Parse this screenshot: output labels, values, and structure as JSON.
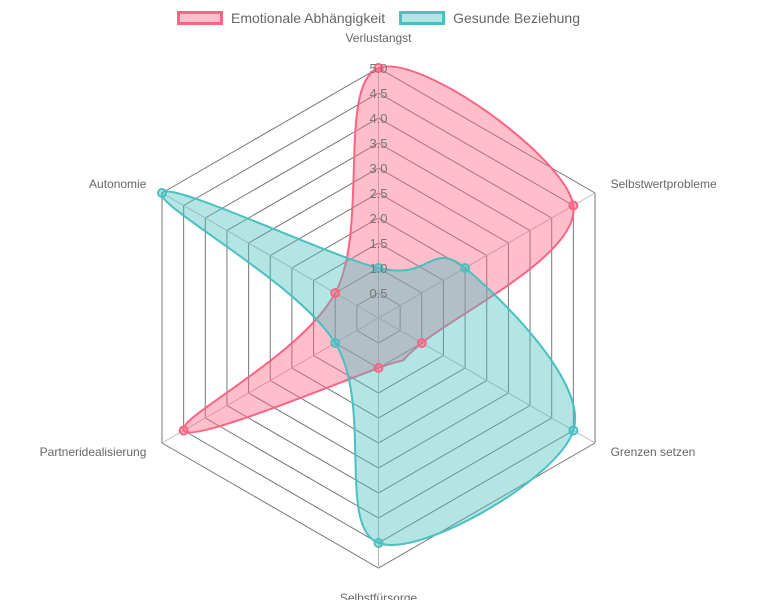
{
  "chart_data": {
    "type": "radar",
    "categories": [
      "Verlustangst",
      "Selbstwertprobleme",
      "Grenzen setzen",
      "Selbstfürsorge",
      "Partneridealisierung",
      "Autonomie"
    ],
    "series": [
      {
        "name": "Emotionale Abhängigkeit",
        "values": [
          5,
          4.5,
          1,
          1,
          4.5,
          1
        ],
        "color": "#ff6384",
        "fill": "rgba(255,99,132,0.42)"
      },
      {
        "name": "Gesunde Beziehung",
        "values": [
          1,
          2,
          4.5,
          4.5,
          1,
          5
        ],
        "color": "#4bc0c0",
        "fill": "rgba(75,192,192,0.42)"
      }
    ],
    "r_range": [
      0,
      5
    ],
    "ticks": [
      "0.5",
      "1.0",
      "1.5",
      "2.0",
      "2.5",
      "3.0",
      "3.5",
      "4.0",
      "4.5",
      "5.0"
    ],
    "legend_position": "top"
  }
}
